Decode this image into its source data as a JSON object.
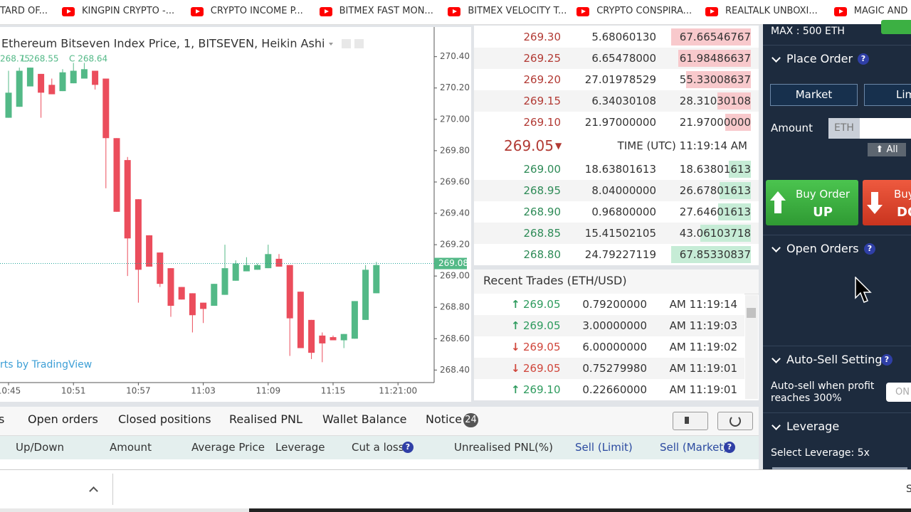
{
  "bookmarks": [
    "TARD OF...",
    "KINGPIN CRYPTO -...",
    "CRYPTO INCOME P...",
    "BITMEX FAST MON...",
    "BITMEX VELOCITY T...",
    "CRYPTO CONSPIRA...",
    "REALTALK UNBOXI...",
    "MAGIC AND"
  ],
  "chart": {
    "type": "candlestick",
    "title": "Ethereum Bitseven Index Price, 1, BITSEVEN, Heikin Ashi",
    "ohlc_labels": [
      "268.75",
      "L 268.55",
      "C 268.64"
    ],
    "watermark": "rts by TradingView",
    "up_color": "#53b987",
    "down_color": "#eb4d5c",
    "x": [
      "10:45",
      "10:46",
      "10:47",
      "10:48",
      "10:49",
      "10:50",
      "10:51",
      "10:52",
      "10:53",
      "10:54",
      "10:55",
      "10:56",
      "10:57",
      "10:58",
      "10:59",
      "11:00",
      "11:01",
      "11:02",
      "11:03",
      "11:04",
      "11:05",
      "11:06",
      "11:07",
      "11:08",
      "11:09",
      "11:10",
      "11:11",
      "11:12",
      "11:13",
      "11:14",
      "11:15",
      "11:16",
      "11:17",
      "11:18",
      "11:19"
    ],
    "candles": [
      {
        "o": 270.01,
        "h": 270.31,
        "l": 270.01,
        "c": 270.17
      },
      {
        "o": 270.08,
        "h": 270.33,
        "l": 270.08,
        "c": 270.31
      },
      {
        "o": 270.21,
        "h": 270.33,
        "l": 270.21,
        "c": 270.33
      },
      {
        "o": 270.29,
        "h": 270.29,
        "l": 270.01,
        "c": 270.17
      },
      {
        "o": 270.22,
        "h": 270.26,
        "l": 270.16,
        "c": 270.16
      },
      {
        "o": 270.18,
        "h": 270.32,
        "l": 270.18,
        "c": 270.3
      },
      {
        "o": 270.23,
        "h": 270.36,
        "l": 270.23,
        "c": 270.31
      },
      {
        "o": 270.26,
        "h": 270.36,
        "l": 270.26,
        "c": 270.32
      },
      {
        "o": 270.31,
        "h": 270.31,
        "l": 270.19,
        "c": 270.22
      },
      {
        "o": 270.26,
        "h": 270.26,
        "l": 269.56,
        "c": 269.88
      },
      {
        "o": 269.88,
        "h": 269.88,
        "l": 269.41,
        "c": 269.41
      },
      {
        "o": 269.74,
        "h": 269.76,
        "l": 269.0,
        "c": 269.24
      },
      {
        "o": 269.49,
        "h": 269.49,
        "l": 268.83,
        "c": 269.04
      },
      {
        "o": 269.26,
        "h": 269.26,
        "l": 269.06,
        "c": 269.06
      },
      {
        "o": 269.15,
        "h": 269.15,
        "l": 268.93,
        "c": 268.95
      },
      {
        "o": 269.05,
        "h": 269.05,
        "l": 268.74,
        "c": 268.81
      },
      {
        "o": 268.93,
        "h": 268.93,
        "l": 268.85,
        "c": 268.85
      },
      {
        "o": 268.89,
        "h": 268.89,
        "l": 268.64,
        "c": 268.75
      },
      {
        "o": 268.83,
        "h": 268.83,
        "l": 268.7,
        "c": 268.79
      },
      {
        "o": 268.81,
        "h": 268.95,
        "l": 268.81,
        "c": 268.95
      },
      {
        "o": 268.88,
        "h": 269.2,
        "l": 268.88,
        "c": 269.05
      },
      {
        "o": 268.97,
        "h": 269.1,
        "l": 268.97,
        "c": 269.08
      },
      {
        "o": 269.03,
        "h": 269.12,
        "l": 269.03,
        "c": 269.07
      },
      {
        "o": 269.04,
        "h": 269.08,
        "l": 269.04,
        "c": 269.07
      },
      {
        "o": 269.05,
        "h": 269.2,
        "l": 269.05,
        "c": 269.14
      },
      {
        "o": 269.11,
        "h": 269.14,
        "l": 269.06,
        "c": 269.06
      },
      {
        "o": 269.07,
        "h": 269.07,
        "l": 268.49,
        "c": 268.73
      },
      {
        "o": 268.9,
        "h": 268.9,
        "l": 268.54,
        "c": 268.54
      },
      {
        "o": 268.72,
        "h": 268.72,
        "l": 268.47,
        "c": 268.51
      },
      {
        "o": 268.62,
        "h": 268.64,
        "l": 268.45,
        "c": 268.57
      },
      {
        "o": 268.61,
        "h": 268.62,
        "l": 268.59,
        "c": 268.59
      },
      {
        "o": 268.59,
        "h": 268.63,
        "l": 268.54,
        "c": 268.63
      },
      {
        "o": 268.6,
        "h": 268.84,
        "l": 268.6,
        "c": 268.84
      },
      {
        "o": 268.72,
        "h": 269.07,
        "l": 268.72,
        "c": 269.04
      },
      {
        "o": 268.89,
        "h": 269.09,
        "l": 268.89,
        "c": 269.07
      }
    ],
    "ylim": [
      268.32,
      270.58
    ],
    "yticks": [
      {
        "value": 270.4,
        "label": "270.40"
      },
      {
        "value": 270.2,
        "label": "270.20"
      },
      {
        "value": 270,
        "label": "270.00"
      },
      {
        "value": 269.8,
        "label": "269.80"
      },
      {
        "value": 269.6,
        "label": "269.60"
      },
      {
        "value": 269.4,
        "label": "269.40"
      },
      {
        "value": 269.2,
        "label": "269.20"
      },
      {
        "value": 269,
        "label": "269.00"
      },
      {
        "value": 268.8,
        "label": "268.80"
      },
      {
        "value": 268.6,
        "label": "268.60"
      },
      {
        "value": 268.4,
        "label": "268.40"
      }
    ],
    "xticks": [
      "10:45",
      "10:51",
      "10:57",
      "11:03",
      "11:09",
      "11:15",
      {
        "value": "11:21",
        "label": "11:21:00"
      }
    ],
    "last_price": {
      "value": 269.08,
      "label": "269.08"
    }
  },
  "order_book": {
    "asks": [
      [
        "269.30",
        "5.68060130",
        "67.66546767"
      ],
      [
        "269.25",
        "6.65478000",
        "61.98486637"
      ],
      [
        "269.20",
        "27.01978529",
        "55.33008637"
      ],
      [
        "269.15",
        "6.34030108",
        "28.31030108"
      ],
      [
        "269.10",
        "21.97000000",
        "21.97000000"
      ]
    ],
    "mid_price": "269.05",
    "mid_arrow": "▼",
    "time_label": "TIME (UTC) 11:19:14 AM",
    "bids": [
      [
        "269.00",
        "18.63801613",
        "18.63801613"
      ],
      [
        "268.95",
        "8.04000000",
        "26.67801613"
      ],
      [
        "268.90",
        "0.96800000",
        "27.64601613"
      ],
      [
        "268.85",
        "15.41502105",
        "43.06103718"
      ],
      [
        "268.80",
        "24.79227119",
        "67.85330837"
      ]
    ]
  },
  "recent_trades": {
    "title": "Recent Trades (ETH/USD)",
    "arrows": {
      "up": "↑",
      "down": "↓"
    },
    "rows": [
      {
        "direction": "up",
        "price": "269.05",
        "amount": "0.79200000",
        "time": "AM 11:19:14"
      },
      {
        "direction": "up",
        "price": "269.05",
        "amount": "3.00000000",
        "time": "AM 11:19:03"
      },
      {
        "direction": "down",
        "price": "269.05",
        "amount": "6.00000000",
        "time": "AM 11:19:02"
      },
      {
        "direction": "down",
        "price": "269.05",
        "amount": "0.75279980",
        "time": "AM 11:19:01"
      },
      {
        "direction": "up",
        "price": "269.10",
        "amount": "0.22660000",
        "time": "AM 11:19:01"
      }
    ]
  },
  "positions": {
    "tabs": [
      "s",
      "Open orders",
      "Closed positions",
      "Realised PNL",
      "Wallet Balance",
      "Notice"
    ],
    "notice_count": "24",
    "columns": [
      "Up/Down",
      "Amount",
      "Average Price",
      "Leverage",
      "Cut a loss",
      "Unrealised PNL(%)",
      "Sell (Limit)",
      "Sell (Market)"
    ]
  },
  "help_icon": "?",
  "sidebar": {
    "max": "MAX : 500 ETH",
    "place_order": "Place Order",
    "order_types": [
      "Market",
      "Lim"
    ],
    "amount_label": "Amount",
    "currency": "ETH",
    "all_button": "⬆ All",
    "buy_up": [
      "Buy Order",
      "UP"
    ],
    "buy_down": [
      "Buy",
      "DO"
    ],
    "open_orders": "Open Orders",
    "auto_sell": "Auto-Sell Setting",
    "auto_sell_text": [
      "Auto-sell when profit",
      "reaches 300%"
    ],
    "toggle": "ON",
    "leverage": "Leverage",
    "select_leverage": "Select Leverage: 5x"
  },
  "footer": {
    "right_text": "S"
  }
}
